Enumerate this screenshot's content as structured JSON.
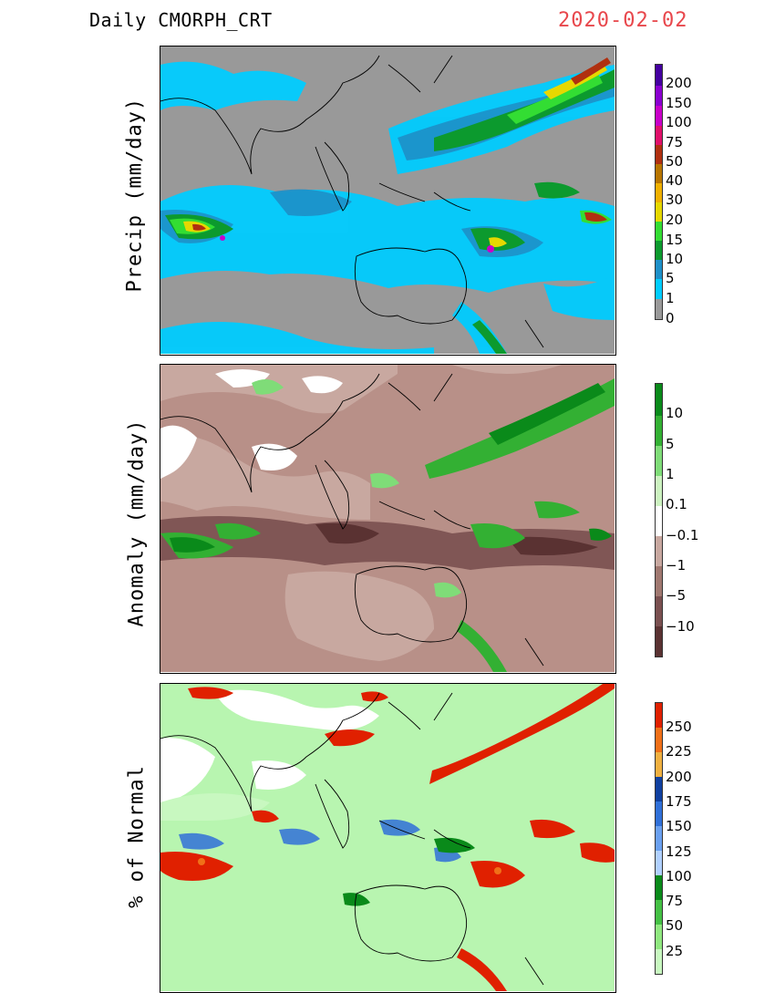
{
  "header": {
    "product": "Daily  CMORPH_CRT",
    "date": "2020-02-02",
    "date_color": "#e8474c"
  },
  "panels": [
    {
      "name": "precip",
      "ylabel": "Precip  (mm/day)",
      "background": "#999999",
      "colorbar": {
        "colors": [
          "#999999",
          "#00ccff",
          "#1e90c8",
          "#0c9a2e",
          "#33dd33",
          "#e6d800",
          "#f0b000",
          "#b87500",
          "#b03010",
          "#e0106a",
          "#c800c8",
          "#8a00d0",
          "#4400a0"
        ],
        "labels": [
          "0",
          "1",
          "5",
          "10",
          "15",
          "20",
          "30",
          "40",
          "50",
          "75",
          "100",
          "150",
          "200"
        ]
      }
    },
    {
      "name": "anomaly",
      "ylabel": "Anomaly  (mm/day)",
      "background": "#b89088",
      "colorbar": {
        "colors": [
          "#5a3232",
          "#7a5050",
          "#a07870",
          "#c8a8a0",
          "#ffffff",
          "#ccf2c0",
          "#7fdc78",
          "#33b033",
          "#0a8a1a"
        ],
        "labels": [
          "−10",
          "−5",
          "−1",
          "−0.1",
          "0.1",
          "1",
          "5",
          "10"
        ]
      }
    },
    {
      "name": "percent",
      "ylabel": "%  of  Normal",
      "background": "#b8f5b0",
      "colorbar": {
        "colors": [
          "#c8f8c0",
          "#90e880",
          "#44c044",
          "#0a8a1a",
          "#b0d0ff",
          "#6aa0f0",
          "#3070d8",
          "#1040a0",
          "#f0b040",
          "#f07018",
          "#e02000"
        ],
        "labels": [
          "25",
          "50",
          "75",
          "100",
          "125",
          "150",
          "175",
          "200",
          "225",
          "250"
        ]
      }
    }
  ]
}
